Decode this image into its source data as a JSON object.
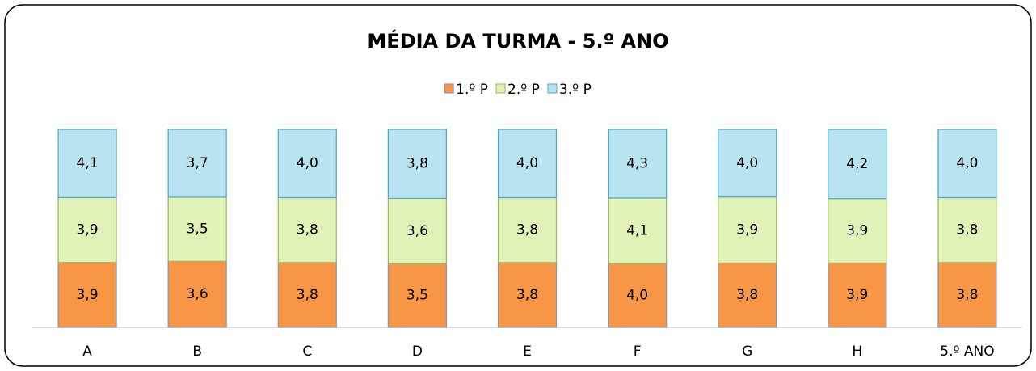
{
  "chart_data": {
    "type": "bar",
    "stacked": "percent",
    "title": "MÉDIA DA TURMA - 5.º ANO",
    "categories": [
      "A",
      "B",
      "C",
      "D",
      "E",
      "F",
      "G",
      "H",
      "5.º ANO"
    ],
    "series": [
      {
        "name": "1.º P",
        "color": "#f79646",
        "values": [
          3.9,
          3.6,
          3.8,
          3.5,
          3.8,
          4.0,
          3.8,
          3.9,
          3.8
        ],
        "value_labels": [
          "3,9",
          "3,6",
          "3,8",
          "3,5",
          "3,8",
          "4,0",
          "3,8",
          "3,9",
          "3,8"
        ]
      },
      {
        "name": "2.º P",
        "color": "#e0f2b8",
        "values": [
          3.9,
          3.5,
          3.8,
          3.6,
          3.8,
          4.1,
          3.9,
          3.9,
          3.8
        ],
        "value_labels": [
          "3,9",
          "3,5",
          "3,8",
          "3,6",
          "3,8",
          "4,1",
          "3,9",
          "3,9",
          "3,8"
        ]
      },
      {
        "name": "3.º P",
        "color": "#b9e3f0",
        "values": [
          4.1,
          3.7,
          4.0,
          3.8,
          4.0,
          4.3,
          4.0,
          4.2,
          4.0
        ],
        "value_labels": [
          "4,1",
          "3,7",
          "4,0",
          "3,8",
          "4,0",
          "4,3",
          "4,0",
          "4,2",
          "4,0"
        ]
      }
    ]
  }
}
